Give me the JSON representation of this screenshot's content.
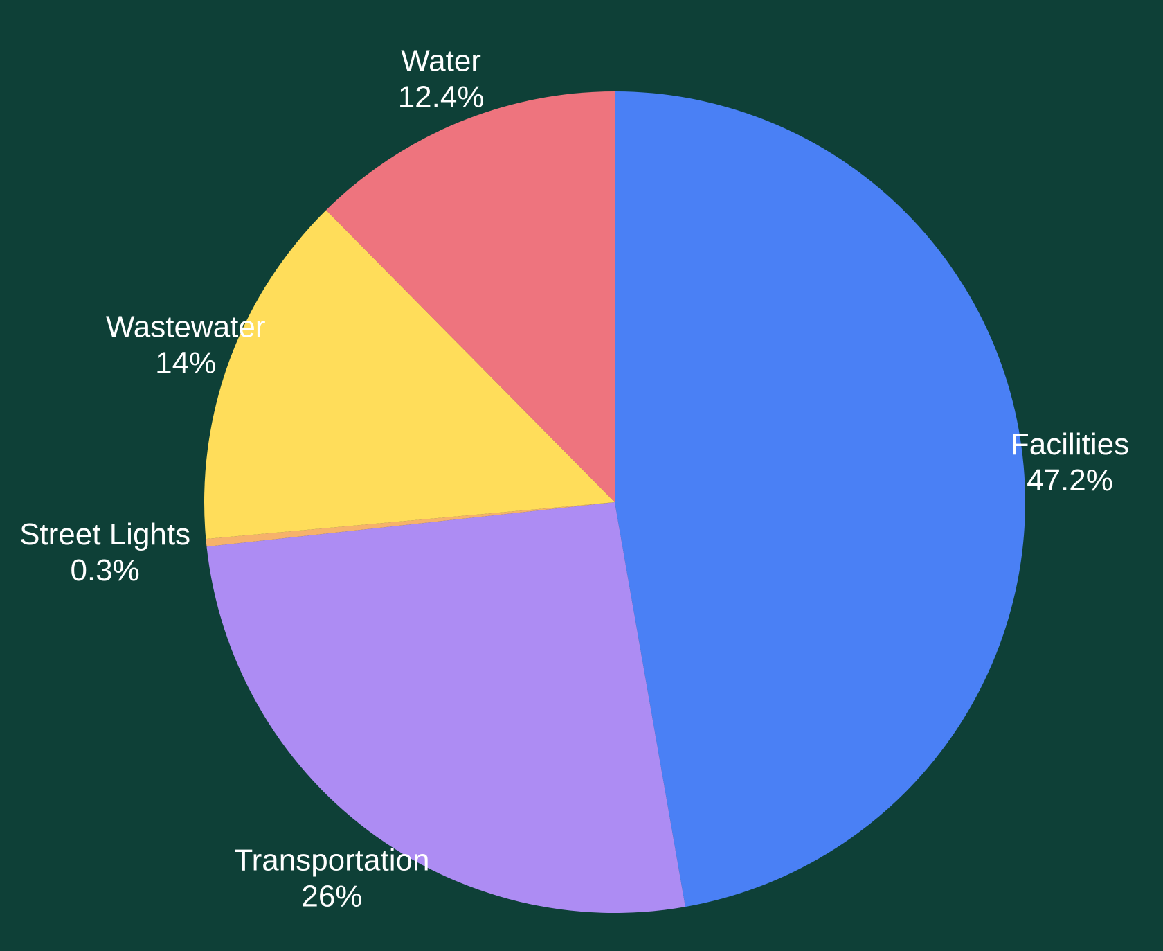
{
  "background": "#0e4037",
  "chart_data": {
    "type": "pie",
    "title": "",
    "start_angle_deg": 0,
    "direction": "clockwise",
    "slices": [
      {
        "name": "Facilities",
        "value": 47.2,
        "label": "47.2%",
        "color": "#4a80f5"
      },
      {
        "name": "Transportation",
        "value": 26,
        "label": "26%",
        "color": "#ad8cf3"
      },
      {
        "name": "Street Lights",
        "value": 0.3,
        "label": "0.3%",
        "color": "#f6b26b"
      },
      {
        "name": "Wastewater",
        "value": 14,
        "label": "14%",
        "color": "#ffdd5a"
      },
      {
        "name": "Water",
        "value": 12.4,
        "label": "12.4%",
        "color": "#ee747e"
      }
    ]
  }
}
